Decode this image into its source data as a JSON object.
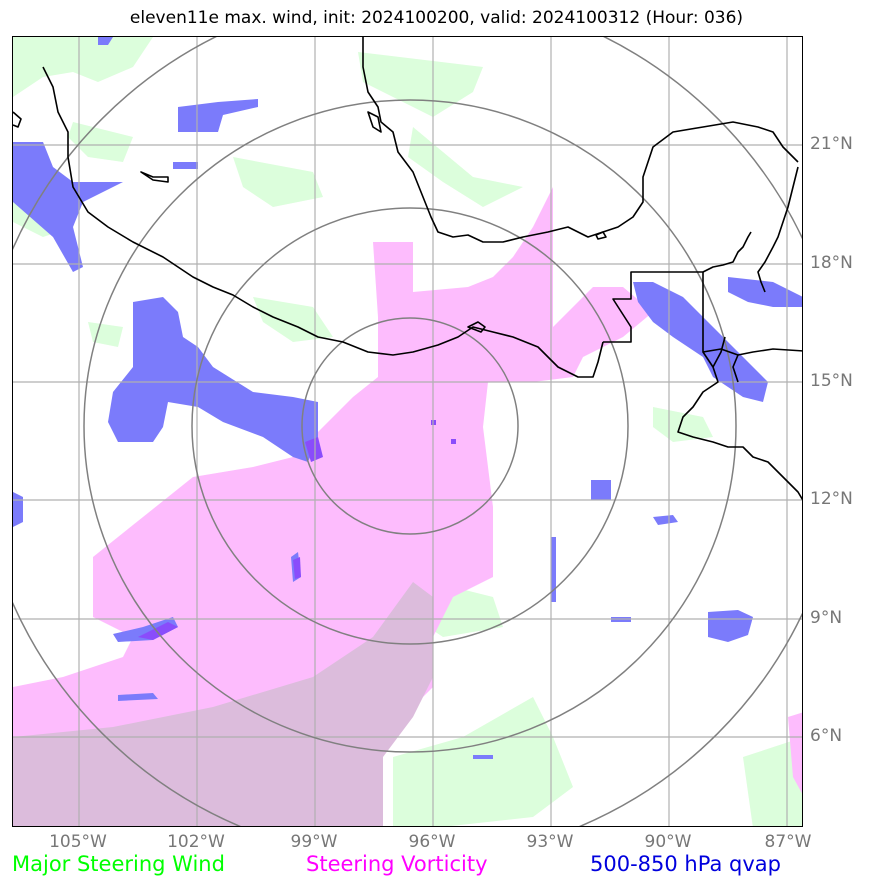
{
  "title": "eleven11e max. wind, init: 2024100200, valid: 2024100312 (Hour: 036)",
  "lat_labels": [
    "21°N",
    "18°N",
    "15°N",
    "12°N",
    "9°N",
    "6°N"
  ],
  "lon_labels": [
    "105°W",
    "102°W",
    "99°W",
    "96°W",
    "93°W",
    "90°W",
    "87°W"
  ],
  "legend": {
    "wind": "Major Steering Wind",
    "vorticity": "Steering Vorticity",
    "qvap": "500-850 hPa qvap"
  },
  "colors": {
    "wind": "#00ff00",
    "vorticity": "#ff00ff",
    "qvap": "#0000dd",
    "wind_fill": "#dcfedc",
    "vorticity_fill": "#fdbcfd",
    "qvap_fill": "#7b7bfb",
    "overlap_fill": "#dcbcdc",
    "grid": "#b0b0b0",
    "range_ring": "#808080",
    "coastline": "#000000"
  }
}
